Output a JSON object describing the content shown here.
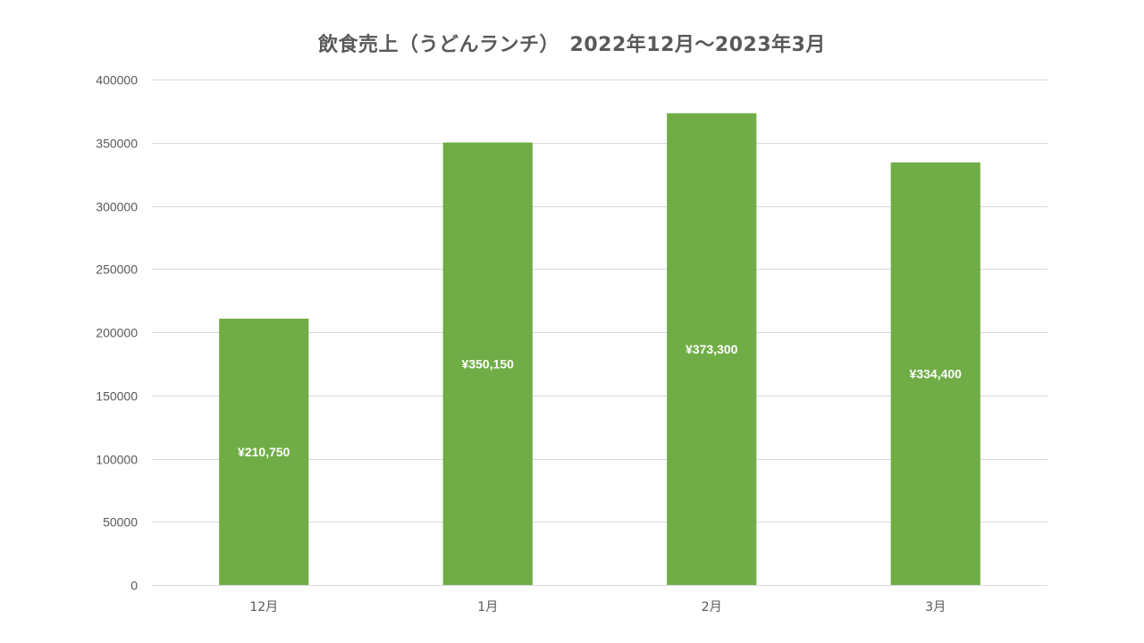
{
  "chart_data": {
    "type": "bar",
    "title": "飲食売上（うどんランチ）　2022年12月～2023年3月",
    "categories": [
      "12月",
      "1月",
      "2月",
      "3月"
    ],
    "values": [
      210750,
      350150,
      373300,
      334400
    ],
    "data_labels": [
      "¥210,750",
      "¥350,150",
      "¥373,300",
      "¥334,400"
    ],
    "ylim": [
      0,
      400000
    ],
    "yticks": [
      0,
      50000,
      100000,
      150000,
      200000,
      250000,
      300000,
      350000,
      400000
    ],
    "ytick_labels": [
      "0",
      "50000",
      "100000",
      "150000",
      "200000",
      "250000",
      "300000",
      "350000",
      "400000"
    ],
    "xlabel": "",
    "ylabel": "",
    "grid": true,
    "legend": "none",
    "bar_color": "#70ad47",
    "gridline_color": "#d9d9d9",
    "text_color": "#595959",
    "label_color": "#ffffff"
  }
}
